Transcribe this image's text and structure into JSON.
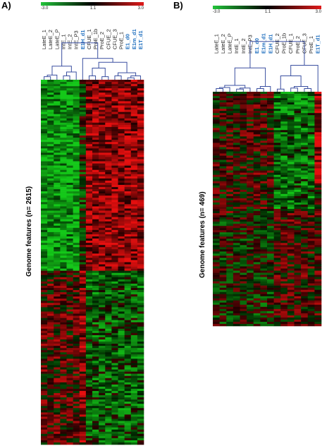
{
  "panels": [
    {
      "letter": "A)",
      "scale": {
        "min": "-3.0",
        "mid": "1.1",
        "max": "3.0"
      },
      "y_label": "Genome features (n= 2615)",
      "samples": [
        {
          "name": "LateE_1",
          "highlight": false
        },
        {
          "name": "LateE_2",
          "highlight": false
        },
        {
          "name": "LateE_P",
          "highlight": false
        },
        {
          "name": "IntE_1",
          "highlight": false
        },
        {
          "name": "IntE_2",
          "highlight": false
        },
        {
          "name": "IntE_P3",
          "highlight": false
        },
        {
          "name": "E1H_d1",
          "highlight": true
        },
        {
          "name": "CFUE_1",
          "highlight": false
        },
        {
          "name": "ProE_1b",
          "highlight": false
        },
        {
          "name": "ProE_2",
          "highlight": false
        },
        {
          "name": "CFUE_2",
          "highlight": false
        },
        {
          "name": "CFUE_3",
          "highlight": false
        },
        {
          "name": "ProE_1",
          "highlight": false
        },
        {
          "name": "E1_d0",
          "highlight": true
        },
        {
          "name": "E1m_d1",
          "highlight": true
        },
        {
          "name": "E1T_d1",
          "highlight": true
        }
      ]
    },
    {
      "letter": "B)",
      "scale": {
        "min": "-3.0",
        "mid": "1.1",
        "max": "3.0"
      },
      "y_label": "Genome features (n= 469)",
      "samples": [
        {
          "name": "LateE_1",
          "highlight": false
        },
        {
          "name": "LateE_2",
          "highlight": false
        },
        {
          "name": "LateE_P",
          "highlight": false
        },
        {
          "name": "IntE_1",
          "highlight": false
        },
        {
          "name": "IntE_2",
          "highlight": false
        },
        {
          "name": "IntE_P3",
          "highlight": false
        },
        {
          "name": "E1_d0",
          "highlight": true
        },
        {
          "name": "E1m_d1",
          "highlight": true
        },
        {
          "name": "E1H_d1",
          "highlight": true
        },
        {
          "name": "CFUE_2",
          "highlight": false
        },
        {
          "name": "ProE_1b",
          "highlight": false
        },
        {
          "name": "CFUE_1",
          "highlight": false
        },
        {
          "name": "ProE_2",
          "highlight": false
        },
        {
          "name": "CFUE_3",
          "highlight": false
        },
        {
          "name": "ProE_1",
          "highlight": false
        },
        {
          "name": "E1T_d1",
          "highlight": true
        }
      ]
    }
  ],
  "colors": {
    "low": "#22c43a",
    "mid": "#000000",
    "high": "#e01a1a",
    "dendrogram": "#3a4fa0",
    "highlight_label": "#1f6fbf",
    "normal_label": "#222222"
  }
}
